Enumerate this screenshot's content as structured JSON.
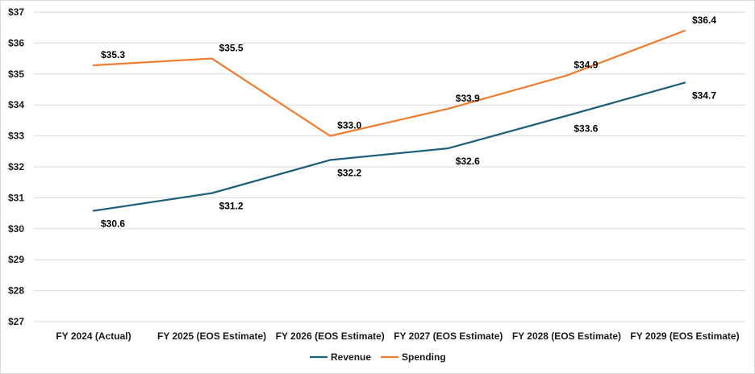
{
  "chart_data": {
    "type": "line",
    "title": "",
    "xlabel": "",
    "ylabel": "",
    "categories": [
      "FY 2024 (Actual)",
      "FY 2025 (EOS Estimate)",
      "FY 2026 (EOS Estimate)",
      "FY 2027 (EOS Estimate)",
      "FY 2028 (EOS Estimate)",
      "FY 2029 (EOS Estimate)"
    ],
    "ylim": [
      27,
      37
    ],
    "yticks": [
      27,
      28,
      29,
      30,
      31,
      32,
      33,
      34,
      35,
      36,
      37
    ],
    "ytick_labels": [
      "$27",
      "$28",
      "$29",
      "$30",
      "$31",
      "$32",
      "$33",
      "$34",
      "$35",
      "$36",
      "$37"
    ],
    "grid": true,
    "legend_position": "bottom",
    "series": [
      {
        "name": "Revenue",
        "color": "#1f5f7a",
        "values": [
          30.58,
          31.15,
          32.22,
          32.6,
          33.65,
          34.72
        ],
        "labels": [
          "$30.6",
          "$31.2",
          "$32.2",
          "$32.6",
          "$33.6",
          "$34.7"
        ],
        "label_side": "below"
      },
      {
        "name": "Spending",
        "color": "#ed7d31",
        "values": [
          35.28,
          35.5,
          33.0,
          33.88,
          34.95,
          36.4
        ],
        "labels": [
          "$35.3",
          "$35.5",
          "$33.0",
          "$33.9",
          "$34.9",
          "$36.4"
        ],
        "label_side": "above"
      }
    ]
  }
}
